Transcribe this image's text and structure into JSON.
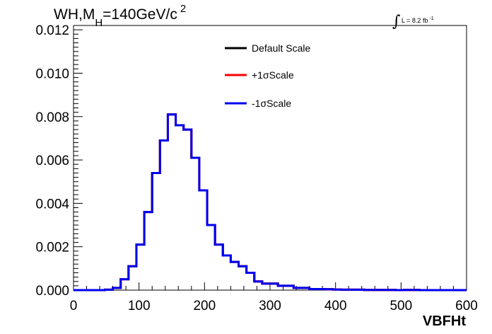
{
  "chart_data": {
    "type": "line",
    "style": "step-histogram",
    "title_parts": {
      "main": "WH,M",
      "sub": "H",
      "rest": "=140GeV/c",
      "sup": "2"
    },
    "lumi_parts": {
      "integral": "∫",
      "text": "L = 8.2 fb",
      "sup": "-1"
    },
    "xlabel": "VBFHt",
    "ylabel": "",
    "xlim": [
      0,
      600
    ],
    "ylim": [
      0,
      0.0122
    ],
    "x_ticks": [
      "0",
      "100",
      "200",
      "300",
      "400",
      "500",
      "600"
    ],
    "y_ticks": [
      "0.000",
      "0.002",
      "0.004",
      "0.006",
      "0.008",
      "0.010",
      "0.012"
    ],
    "bin_edges": [
      0,
      12,
      24,
      36,
      48,
      60,
      72,
      84,
      96,
      108,
      120,
      132,
      144,
      156,
      168,
      180,
      192,
      204,
      216,
      228,
      240,
      252,
      264,
      276,
      288,
      300,
      312,
      324,
      336,
      348,
      360,
      372,
      384,
      396,
      408,
      420,
      432,
      444,
      456,
      468,
      480,
      492,
      504,
      516,
      528,
      540,
      552,
      564,
      576,
      588,
      600
    ],
    "series": [
      {
        "name": "Default Scale",
        "color": "#000000",
        "values": [
          0,
          0,
          0,
          0,
          2e-05,
          0.0001,
          0.0005,
          0.0011,
          0.0021,
          0.0036,
          0.0054,
          0.0069,
          0.0081,
          0.0076,
          0.0074,
          0.0061,
          0.0046,
          0.003,
          0.0021,
          0.0016,
          0.0013,
          0.0011,
          0.0008,
          0.0004,
          0.0003,
          0.0003,
          0.0002,
          0.0002,
          0.0001,
          0.0001,
          5e-05,
          5e-05,
          4e-05,
          3e-05,
          2e-05,
          2e-05,
          2e-05,
          1e-05,
          1e-05,
          1e-05,
          1e-05,
          0,
          1e-05,
          1e-05,
          0,
          0,
          0,
          0,
          0,
          0
        ]
      },
      {
        "name": "+1σScale",
        "color": "#ff0000",
        "values": [
          0,
          0,
          0,
          0,
          2e-05,
          0.0001,
          0.0005,
          0.0011,
          0.0021,
          0.0036,
          0.0054,
          0.0069,
          0.0081,
          0.0076,
          0.0074,
          0.0061,
          0.0046,
          0.003,
          0.0021,
          0.0016,
          0.0013,
          0.0011,
          0.0008,
          0.0004,
          0.0003,
          0.0003,
          0.0002,
          0.0002,
          0.0001,
          0.0001,
          5e-05,
          5e-05,
          4e-05,
          3e-05,
          2e-05,
          2e-05,
          2e-05,
          1e-05,
          1e-05,
          1e-05,
          1e-05,
          0,
          1e-05,
          1e-05,
          0,
          0,
          0,
          0,
          0,
          0
        ]
      },
      {
        "name": "-1σScale",
        "color": "#0000ee",
        "values": [
          0,
          0,
          0,
          0,
          2e-05,
          0.0001,
          0.0005,
          0.0011,
          0.0021,
          0.0036,
          0.0054,
          0.0069,
          0.0081,
          0.0076,
          0.0074,
          0.0061,
          0.0046,
          0.003,
          0.0021,
          0.0016,
          0.0013,
          0.0011,
          0.0008,
          0.0004,
          0.0003,
          0.0003,
          0.0002,
          0.0002,
          0.0001,
          0.0001,
          5e-05,
          5e-05,
          4e-05,
          3e-05,
          2e-05,
          2e-05,
          2e-05,
          1e-05,
          1e-05,
          1e-05,
          1e-05,
          0,
          1e-05,
          1e-05,
          0,
          0,
          0,
          0,
          0,
          0
        ]
      }
    ],
    "legend_position": "top-center",
    "grid": false
  }
}
